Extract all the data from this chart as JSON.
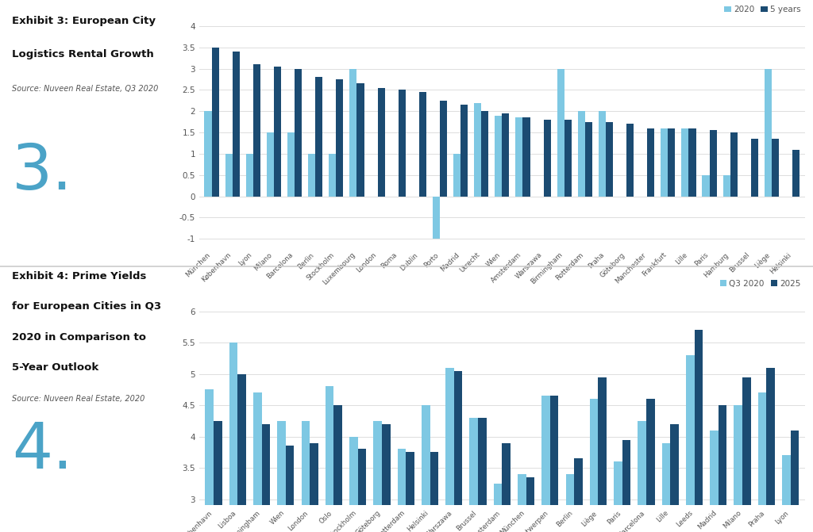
{
  "chart3": {
    "title_line1": "Exhibit 3: European City",
    "title_line2": "Logistics Rental Growth",
    "source": "Source: Nuveen Real Estate, Q3 2020",
    "legend_labels": [
      "2020",
      "5 years"
    ],
    "colors": [
      "#7EC8E3",
      "#1B4B72"
    ],
    "cities": [
      "München",
      "København",
      "Lyon",
      "Milano",
      "Barcelona",
      "Berlin",
      "Stockholm",
      "Luxembourg",
      "London",
      "Roma",
      "Dublin",
      "Porto",
      "Madrid",
      "Utrecht",
      "Wien",
      "Amsterdam",
      "Warszawa",
      "Birmingham",
      "Rotterdam",
      "Praha",
      "Göteborg",
      "Manchester",
      "Frankfurt",
      "Lille",
      "Paris",
      "Hamburg",
      "Brussel",
      "Liège",
      "Helsinki"
    ],
    "val_2020": [
      2.0,
      1.0,
      1.0,
      1.5,
      1.5,
      1.0,
      1.0,
      3.0,
      0.0,
      0.0,
      0.0,
      -1.0,
      1.0,
      2.2,
      1.9,
      1.85,
      0.0,
      3.0,
      2.0,
      2.0,
      0.0,
      0.0,
      1.6,
      1.6,
      0.5,
      0.5,
      0.0,
      3.0,
      0.0
    ],
    "val_5yr": [
      3.5,
      3.4,
      3.1,
      3.05,
      3.0,
      2.8,
      2.75,
      2.65,
      2.55,
      2.5,
      2.45,
      2.25,
      2.15,
      2.0,
      1.95,
      1.85,
      1.8,
      1.8,
      1.75,
      1.75,
      1.7,
      1.6,
      1.6,
      1.6,
      1.55,
      1.5,
      1.35,
      1.35,
      1.1
    ],
    "ylim": [
      -1.2,
      4.3
    ],
    "yticks": [
      -1,
      -0.5,
      0,
      0.5,
      1,
      1.5,
      2,
      2.5,
      3,
      3.5,
      4
    ]
  },
  "chart4": {
    "title_line1": "Exhibit 4: Prime Yields",
    "title_line2": "for European Cities in Q3",
    "title_line3": "2020 in Comparison to",
    "title_line4": "5-Year Outlook",
    "source": "Source: Nuveen Real Estate, 2020",
    "legend_labels": [
      "Q3 2020",
      "2025"
    ],
    "colors": [
      "#7EC8E3",
      "#1B4B72"
    ],
    "cities": [
      "København",
      "Lisboa",
      "Birmingham",
      "Wien",
      "London",
      "Oslo",
      "Stockholm",
      "Göteborg",
      "Rotterdam",
      "Helsinki",
      "Warszawa",
      "Brussel",
      "Amsterdam",
      "München",
      "Antwerpen",
      "Berlin",
      "Liège",
      "Paris",
      "Barcelona",
      "Lille",
      "Leeds",
      "Madrid",
      "Milano",
      "Praha",
      "Lyon"
    ],
    "val_q3": [
      4.75,
      5.5,
      4.7,
      4.25,
      4.25,
      4.8,
      4.0,
      4.25,
      3.8,
      4.5,
      5.1,
      4.3,
      3.25,
      3.4,
      4.65,
      3.4,
      4.6,
      3.6,
      4.25,
      3.9,
      5.3,
      4.1,
      4.5,
      4.7,
      3.7
    ],
    "val_2025": [
      4.25,
      5.0,
      4.2,
      3.85,
      3.9,
      4.5,
      3.8,
      4.2,
      3.75,
      3.75,
      5.05,
      4.3,
      3.9,
      3.35,
      4.65,
      3.65,
      4.95,
      3.95,
      4.6,
      4.2,
      5.7,
      4.5,
      4.95,
      5.1,
      4.1
    ],
    "ylim": [
      2.9,
      6.3
    ],
    "yticks": [
      3,
      3.5,
      4,
      4.5,
      5,
      5.5,
      6
    ]
  },
  "bg_color": "#FFFFFF",
  "text_color": "#555555",
  "title_color": "#111111",
  "number_color": "#4BA3C7",
  "grid_color": "#DDDDDD",
  "divider_color": "#CCCCCC"
}
